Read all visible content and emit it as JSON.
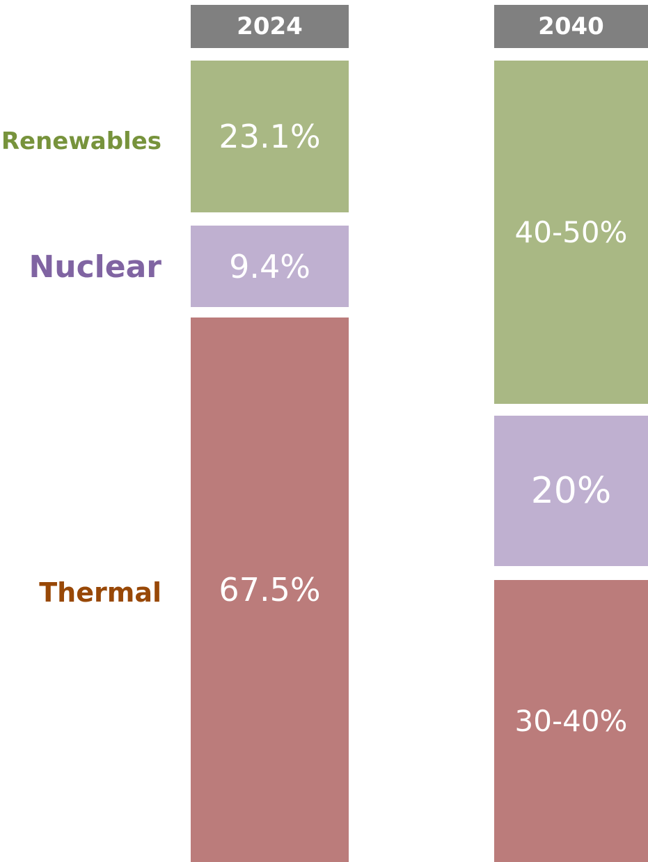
{
  "row_labels": [
    "Renewables",
    "Nuclear",
    "Thermal"
  ],
  "columns": [
    {
      "header": "2024",
      "segments": [
        "23.1%",
        "9.4%",
        "67.5%"
      ]
    },
    {
      "header": "2040",
      "segments": [
        "40-50%",
        "20%",
        "30-40%"
      ]
    }
  ]
}
